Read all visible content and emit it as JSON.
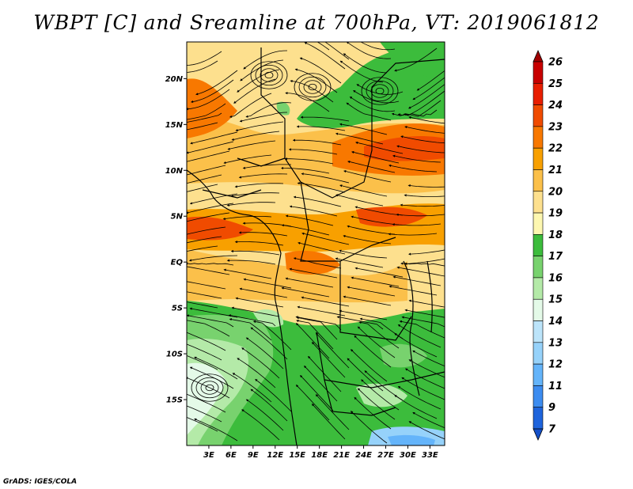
{
  "title": "WBPT [C] and Sreamline at 700hPa, VT: 2019061812",
  "credit": "GrADS: IGES/COLA",
  "map": {
    "lon_range": [
      0,
      35
    ],
    "lat_range": [
      -20,
      24
    ],
    "lat_labels": [
      {
        "lat": 20,
        "text": "20N"
      },
      {
        "lat": 15,
        "text": "15N"
      },
      {
        "lat": 10,
        "text": "10N"
      },
      {
        "lat": 5,
        "text": "5N"
      },
      {
        "lat": 0,
        "text": "EQ"
      },
      {
        "lat": -5,
        "text": "5S"
      },
      {
        "lat": -10,
        "text": "10S"
      },
      {
        "lat": -15,
        "text": "15S"
      }
    ],
    "lon_labels": [
      {
        "lon": 3,
        "text": "3E"
      },
      {
        "lon": 6,
        "text": "6E"
      },
      {
        "lon": 9,
        "text": "9E"
      },
      {
        "lon": 12,
        "text": "12E"
      },
      {
        "lon": 15,
        "text": "15E"
      },
      {
        "lon": 18,
        "text": "18E"
      },
      {
        "lon": 21,
        "text": "21E"
      },
      {
        "lon": 24,
        "text": "24E"
      },
      {
        "lon": 27,
        "text": "27E"
      },
      {
        "lon": 30,
        "text": "30E"
      },
      {
        "lon": 33,
        "text": "33E"
      }
    ]
  },
  "colorbar": {
    "levels": [
      {
        "label": "26",
        "color": "#a00000"
      },
      {
        "label": "25",
        "color": "#c80000"
      },
      {
        "label": "24",
        "color": "#e81e00"
      },
      {
        "label": "23",
        "color": "#f04b00"
      },
      {
        "label": "22",
        "color": "#f87800"
      },
      {
        "label": "21",
        "color": "#f8a000"
      },
      {
        "label": "20",
        "color": "#fbc04a"
      },
      {
        "label": "19",
        "color": "#fde08e"
      },
      {
        "label": "18",
        "color": "#fdf7b0"
      },
      {
        "label": "17",
        "color": "#3cbc3c"
      },
      {
        "label": "16",
        "color": "#78d26e"
      },
      {
        "label": "15",
        "color": "#b4eaa8"
      },
      {
        "label": "14",
        "color": "#e4fae8"
      },
      {
        "label": "13",
        "color": "#bce4fa"
      },
      {
        "label": "12",
        "color": "#96d2fa"
      },
      {
        "label": "11",
        "color": "#64b4fa"
      },
      {
        "label": "9",
        "color": "#3c8cf0"
      },
      {
        "label": "7",
        "color": "#1e64dc"
      }
    ],
    "below_color": "#1450c8"
  }
}
